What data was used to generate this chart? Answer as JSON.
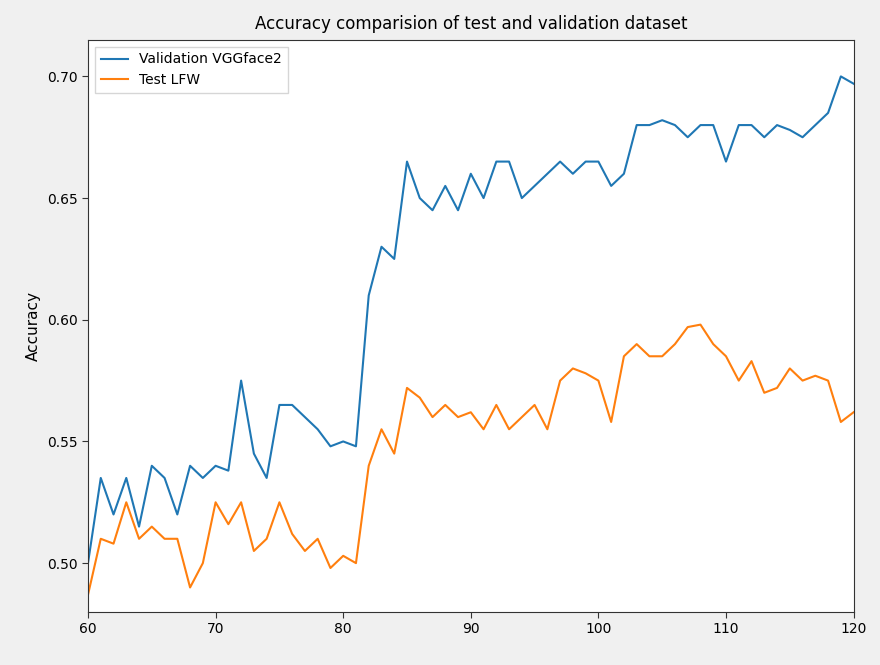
{
  "title": "Accuracy comparision of test and validation dataset",
  "xlabel": "",
  "ylabel": "Accuracy",
  "xlim": [
    60,
    120
  ],
  "ylim": [
    0.48,
    0.715
  ],
  "legend_labels": [
    "Validation VGGface2",
    "Test LFW"
  ],
  "blue_color": "#1f77b4",
  "orange_color": "#ff7f0e",
  "background_color": "#f0f0f0",
  "axes_bg_color": "#ffffff",
  "validation_x": [
    60,
    61,
    62,
    63,
    64,
    65,
    66,
    67,
    68,
    69,
    70,
    71,
    72,
    73,
    74,
    75,
    76,
    77,
    78,
    79,
    80,
    81,
    82,
    83,
    84,
    85,
    86,
    87,
    88,
    89,
    90,
    91,
    92,
    93,
    94,
    95,
    96,
    97,
    98,
    99,
    100,
    101,
    102,
    103,
    104,
    105,
    106,
    107,
    108,
    109,
    110,
    111,
    112,
    113,
    114,
    115,
    116,
    117,
    118,
    119,
    120
  ],
  "validation_y": [
    0.5,
    0.535,
    0.52,
    0.535,
    0.515,
    0.54,
    0.535,
    0.52,
    0.54,
    0.535,
    0.54,
    0.538,
    0.575,
    0.545,
    0.535,
    0.565,
    0.565,
    0.56,
    0.555,
    0.548,
    0.55,
    0.548,
    0.61,
    0.63,
    0.625,
    0.665,
    0.65,
    0.645,
    0.655,
    0.645,
    0.66,
    0.65,
    0.665,
    0.665,
    0.65,
    0.655,
    0.66,
    0.665,
    0.66,
    0.665,
    0.665,
    0.655,
    0.66,
    0.68,
    0.68,
    0.682,
    0.68,
    0.675,
    0.68,
    0.68,
    0.665,
    0.68,
    0.68,
    0.675,
    0.68,
    0.678,
    0.675,
    0.68,
    0.685,
    0.7,
    0.697
  ],
  "test_x": [
    60,
    61,
    62,
    63,
    64,
    65,
    66,
    67,
    68,
    69,
    70,
    71,
    72,
    73,
    74,
    75,
    76,
    77,
    78,
    79,
    80,
    81,
    82,
    83,
    84,
    85,
    86,
    87,
    88,
    89,
    90,
    91,
    92,
    93,
    94,
    95,
    96,
    97,
    98,
    99,
    100,
    101,
    102,
    103,
    104,
    105,
    106,
    107,
    108,
    109,
    110,
    111,
    112,
    113,
    114,
    115,
    116,
    117,
    118,
    119,
    120
  ],
  "test_y": [
    0.487,
    0.51,
    0.508,
    0.525,
    0.51,
    0.515,
    0.51,
    0.51,
    0.49,
    0.5,
    0.525,
    0.516,
    0.525,
    0.505,
    0.51,
    0.525,
    0.512,
    0.505,
    0.51,
    0.498,
    0.503,
    0.5,
    0.54,
    0.555,
    0.545,
    0.572,
    0.568,
    0.56,
    0.565,
    0.56,
    0.562,
    0.555,
    0.565,
    0.555,
    0.56,
    0.565,
    0.555,
    0.575,
    0.58,
    0.578,
    0.575,
    0.558,
    0.585,
    0.59,
    0.585,
    0.585,
    0.59,
    0.597,
    0.598,
    0.59,
    0.585,
    0.575,
    0.583,
    0.57,
    0.572,
    0.58,
    0.575,
    0.577,
    0.575,
    0.558,
    0.562
  ]
}
